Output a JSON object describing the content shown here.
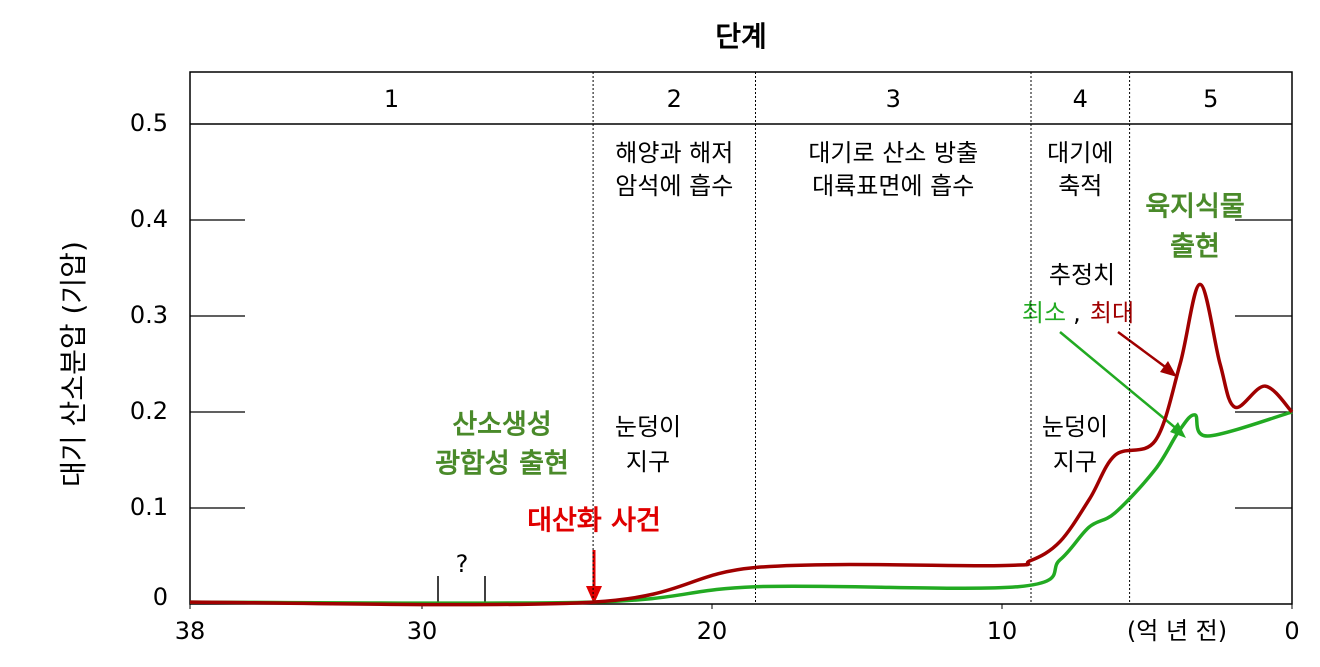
{
  "chart_data": {
    "type": "line",
    "title": "단계",
    "y_label": "대기 산소분압 (기압)",
    "x_unit_label": "(억 년 전)",
    "xlim": [
      38,
      0
    ],
    "xticks": [
      38,
      30,
      20,
      10,
      0
    ],
    "ylim": [
      0,
      0.5
    ],
    "yticks": [
      0,
      0.1,
      0.2,
      0.3,
      0.4,
      0.5
    ],
    "stage_boundaries": [
      24.1,
      18.5,
      9.0,
      5.6
    ],
    "stages": [
      {
        "name": "1",
        "lines": []
      },
      {
        "name": "2",
        "lines": [
          "해양과 해저",
          "암석에 흡수"
        ]
      },
      {
        "name": "3",
        "lines": [
          "대기로 산소 방출",
          "대륙표면에 흡수"
        ]
      },
      {
        "name": "4",
        "lines": [
          "대기에",
          "축적"
        ]
      },
      {
        "name": "5",
        "lines": []
      }
    ],
    "series": [
      {
        "name": "최대",
        "color": "#a00000",
        "x": [
          38,
          24.1,
          18.5,
          10.07,
          9.03,
          8.0,
          6.97,
          6.1,
          4.72,
          3.86,
          3.17,
          2.48,
          1.97,
          0.93,
          0
        ],
        "values": [
          0.002,
          0.002,
          0.038,
          0.04,
          0.045,
          0.065,
          0.11,
          0.155,
          0.17,
          0.25,
          0.333,
          0.25,
          0.205,
          0.227,
          0.2
        ]
      },
      {
        "name": "최소",
        "color": "#22aa22",
        "x": [
          38,
          24.1,
          18.5,
          9.45,
          8.0,
          7.0,
          6.1,
          4.72,
          3.9,
          3.35,
          2.9,
          0
        ],
        "values": [
          0.002,
          0.002,
          0.018,
          0.018,
          0.046,
          0.08,
          0.095,
          0.14,
          0.18,
          0.197,
          0.175,
          0.2
        ]
      }
    ],
    "estimate_label": "추정치",
    "legend_separator": ",",
    "annotations": {
      "photosynthesis": [
        "산소생성",
        "광합성 출현"
      ],
      "goe": "대산화 사건",
      "snowball_1": [
        "눈덩이",
        "지구"
      ],
      "snowball_2": [
        "눈덩이",
        "지구"
      ],
      "land_plants": [
        "육지식물",
        "출현"
      ],
      "unknown": "?"
    }
  }
}
